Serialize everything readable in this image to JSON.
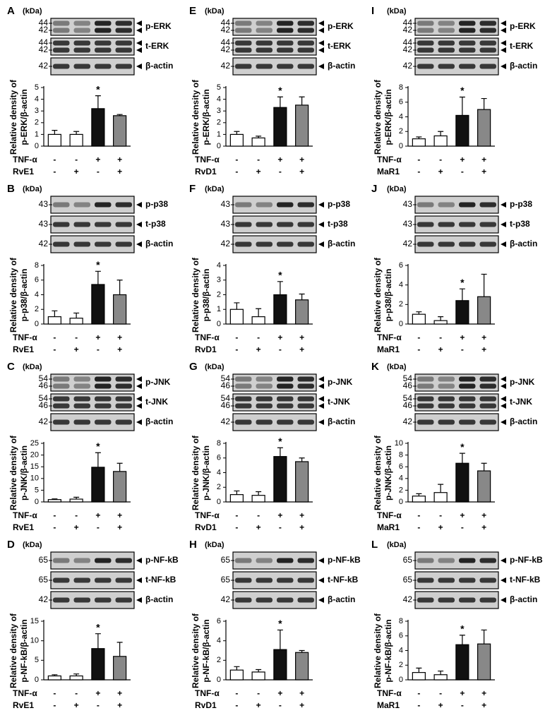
{
  "chart_data": [
    {
      "type": "bar",
      "panel": "A",
      "kda": "(kDa)",
      "blots": [
        {
          "name": "p-ERK",
          "markers": [
            "44",
            "42"
          ]
        },
        {
          "name": "t-ERK",
          "markers": [
            "44",
            "42"
          ]
        },
        {
          "name": "β-actin",
          "markers": [
            "42"
          ]
        }
      ],
      "ylabel": [
        "Relative density of",
        "p-ERK/β-actin"
      ],
      "values": [
        1.0,
        1.0,
        3.2,
        2.6
      ],
      "errors": [
        0.35,
        0.25,
        1.1,
        0.1
      ],
      "annotations": [
        null,
        null,
        "*",
        null
      ],
      "colors": [
        "#ffffff",
        "#ffffff",
        "#111111",
        "#888888"
      ],
      "ylim": [
        0,
        5
      ],
      "yticks": [
        0,
        1,
        2,
        3,
        4,
        5
      ],
      "treatments": [
        {
          "name": "TNF-α",
          "signs": [
            "-",
            "-",
            "+",
            "+"
          ]
        },
        {
          "name": "RvE1",
          "signs": [
            "-",
            "+",
            "-",
            "+"
          ]
        }
      ]
    },
    {
      "type": "bar",
      "panel": "B",
      "kda": "(kDa)",
      "blots": [
        {
          "name": "p-p38",
          "markers": [
            "43"
          ]
        },
        {
          "name": "t-p38",
          "markers": [
            "43"
          ]
        },
        {
          "name": "β-actin",
          "markers": [
            "42"
          ]
        }
      ],
      "ylabel": [
        "Relative density of",
        "p-p38/β-actin"
      ],
      "values": [
        1.0,
        0.8,
        5.4,
        4.0
      ],
      "errors": [
        0.8,
        0.7,
        1.8,
        2.0
      ],
      "annotations": [
        null,
        null,
        "*",
        null
      ],
      "colors": [
        "#ffffff",
        "#ffffff",
        "#111111",
        "#888888"
      ],
      "ylim": [
        0,
        8
      ],
      "yticks": [
        0,
        2,
        4,
        6,
        8
      ],
      "treatments": [
        {
          "name": "TNF-α",
          "signs": [
            "-",
            "-",
            "+",
            "+"
          ]
        },
        {
          "name": "RvE1",
          "signs": [
            "-",
            "+",
            "-",
            "+"
          ]
        }
      ]
    },
    {
      "type": "bar",
      "panel": "C",
      "kda": "(kDa)",
      "blots": [
        {
          "name": "p-JNK",
          "markers": [
            "54",
            "46"
          ]
        },
        {
          "name": "t-JNK",
          "markers": [
            "54",
            "46"
          ]
        },
        {
          "name": "β-actin",
          "markers": [
            "42"
          ]
        }
      ],
      "ylabel": [
        "Relative density of",
        "p-JNK/β-actin"
      ],
      "values": [
        1.0,
        1.2,
        14.8,
        13.0
      ],
      "errors": [
        0.3,
        0.8,
        6.2,
        3.5
      ],
      "annotations": [
        null,
        null,
        "*",
        null
      ],
      "colors": [
        "#ffffff",
        "#ffffff",
        "#111111",
        "#888888"
      ],
      "ylim": [
        0,
        25
      ],
      "yticks": [
        0,
        5,
        10,
        15,
        20,
        25
      ],
      "treatments": [
        {
          "name": "TNF-α",
          "signs": [
            "-",
            "-",
            "+",
            "+"
          ]
        },
        {
          "name": "RvE1",
          "signs": [
            "-",
            "+",
            "-",
            "+"
          ]
        }
      ]
    },
    {
      "type": "bar",
      "panel": "D",
      "kda": "(kDa)",
      "blots": [
        {
          "name": "p-NF-kB",
          "markers": [
            "65"
          ]
        },
        {
          "name": "t-NF-kB",
          "markers": [
            "65"
          ]
        },
        {
          "name": "β-actin",
          "markers": [
            "42"
          ]
        }
      ],
      "ylabel": [
        "Relative density of",
        "p-NF-kB/β-actin"
      ],
      "values": [
        1.0,
        1.0,
        8.0,
        6.0
      ],
      "errors": [
        0.3,
        0.5,
        3.8,
        3.6
      ],
      "annotations": [
        null,
        null,
        "*",
        null
      ],
      "colors": [
        "#ffffff",
        "#ffffff",
        "#111111",
        "#888888"
      ],
      "ylim": [
        0,
        15
      ],
      "yticks": [
        0,
        5,
        10,
        15
      ],
      "treatments": [
        {
          "name": "TNF-α",
          "signs": [
            "-",
            "-",
            "+",
            "+"
          ]
        },
        {
          "name": "RvE1",
          "signs": [
            "-",
            "+",
            "-",
            "+"
          ]
        }
      ]
    },
    {
      "type": "bar",
      "panel": "E",
      "kda": "(kDa)",
      "blots": [
        {
          "name": "p-ERK",
          "markers": [
            "44",
            "42"
          ]
        },
        {
          "name": "t-ERK",
          "markers": [
            "44",
            "42"
          ]
        },
        {
          "name": "β-actin",
          "markers": [
            "42"
          ]
        }
      ],
      "ylabel": [
        "Relative density of",
        "p-ERK/β-actin"
      ],
      "values": [
        1.0,
        0.7,
        3.3,
        3.5
      ],
      "errors": [
        0.25,
        0.15,
        0.9,
        0.7
      ],
      "annotations": [
        null,
        null,
        "*",
        null
      ],
      "colors": [
        "#ffffff",
        "#ffffff",
        "#111111",
        "#888888"
      ],
      "ylim": [
        0,
        5
      ],
      "yticks": [
        0,
        1,
        2,
        3,
        4,
        5
      ],
      "treatments": [
        {
          "name": "TNF-α",
          "signs": [
            "-",
            "-",
            "+",
            "+"
          ]
        },
        {
          "name": "RvD1",
          "signs": [
            "-",
            "+",
            "-",
            "+"
          ]
        }
      ]
    },
    {
      "type": "bar",
      "panel": "F",
      "kda": "(kDa)",
      "blots": [
        {
          "name": "p-p38",
          "markers": [
            "43"
          ]
        },
        {
          "name": "t-p38",
          "markers": [
            "43"
          ]
        },
        {
          "name": "β-actin",
          "markers": [
            "42"
          ]
        }
      ],
      "ylabel": [
        "Relative density of",
        "p-p38/β-actin"
      ],
      "values": [
        1.0,
        0.5,
        2.0,
        1.65
      ],
      "errors": [
        0.45,
        0.55,
        0.9,
        0.4
      ],
      "annotations": [
        null,
        null,
        "*",
        null
      ],
      "colors": [
        "#ffffff",
        "#ffffff",
        "#111111",
        "#888888"
      ],
      "ylim": [
        0,
        4
      ],
      "yticks": [
        0,
        1,
        2,
        3,
        4
      ],
      "treatments": [
        {
          "name": "TNF-α",
          "signs": [
            "-",
            "-",
            "+",
            "+"
          ]
        },
        {
          "name": "RvD1",
          "signs": [
            "-",
            "+",
            "-",
            "+"
          ]
        }
      ]
    },
    {
      "type": "bar",
      "panel": "G",
      "kda": "(kDa)",
      "blots": [
        {
          "name": "p-JNK",
          "markers": [
            "54",
            "46"
          ]
        },
        {
          "name": "t-JNK",
          "markers": [
            "54",
            "46"
          ]
        },
        {
          "name": "β-actin",
          "markers": [
            "42"
          ]
        }
      ],
      "ylabel": [
        "Relative density of",
        "p-JNK/β-actin"
      ],
      "values": [
        1.0,
        0.9,
        6.2,
        5.5
      ],
      "errors": [
        0.5,
        0.5,
        1.2,
        0.5
      ],
      "annotations": [
        null,
        null,
        "*",
        null
      ],
      "colors": [
        "#ffffff",
        "#ffffff",
        "#111111",
        "#888888"
      ],
      "ylim": [
        0,
        8
      ],
      "yticks": [
        0,
        2,
        4,
        6,
        8
      ],
      "treatments": [
        {
          "name": "TNF-α",
          "signs": [
            "-",
            "-",
            "+",
            "+"
          ]
        },
        {
          "name": "RvD1",
          "signs": [
            "-",
            "+",
            "-",
            "+"
          ]
        }
      ]
    },
    {
      "type": "bar",
      "panel": "H",
      "kda": "(kDa)",
      "blots": [
        {
          "name": "p-NF-kB",
          "markers": [
            "65"
          ]
        },
        {
          "name": "t-NF-kB",
          "markers": [
            "65"
          ]
        },
        {
          "name": "β-actin",
          "markers": [
            "42"
          ]
        }
      ],
      "ylabel": [
        "Relative density of",
        "p-NF-kB/β-actin"
      ],
      "values": [
        1.0,
        0.8,
        3.1,
        2.8
      ],
      "errors": [
        0.35,
        0.25,
        2.0,
        0.2
      ],
      "annotations": [
        null,
        null,
        "*",
        null
      ],
      "colors": [
        "#ffffff",
        "#ffffff",
        "#111111",
        "#888888"
      ],
      "ylim": [
        0,
        6
      ],
      "yticks": [
        0,
        2,
        4,
        6
      ],
      "treatments": [
        {
          "name": "TNF-α",
          "signs": [
            "-",
            "-",
            "+",
            "+"
          ]
        },
        {
          "name": "RvD1",
          "signs": [
            "-",
            "+",
            "-",
            "+"
          ]
        }
      ]
    },
    {
      "type": "bar",
      "panel": "I",
      "kda": "(kDa)",
      "blots": [
        {
          "name": "p-ERK",
          "markers": [
            "44",
            "42"
          ]
        },
        {
          "name": "t-ERK",
          "markers": [
            "44",
            "42"
          ]
        },
        {
          "name": "β-actin",
          "markers": [
            "42"
          ]
        }
      ],
      "ylabel": [
        "Relative density of",
        "p-ERK/β-actin"
      ],
      "values": [
        1.0,
        1.4,
        4.2,
        5.0
      ],
      "errors": [
        0.25,
        0.6,
        2.5,
        1.5
      ],
      "annotations": [
        null,
        null,
        "*",
        null
      ],
      "colors": [
        "#ffffff",
        "#ffffff",
        "#111111",
        "#888888"
      ],
      "ylim": [
        0,
        8
      ],
      "yticks": [
        0,
        2,
        4,
        6,
        8
      ],
      "treatments": [
        {
          "name": "TNF-α",
          "signs": [
            "-",
            "-",
            "+",
            "+"
          ]
        },
        {
          "name": "MaR1",
          "signs": [
            "-",
            "+",
            "-",
            "+"
          ]
        }
      ]
    },
    {
      "type": "bar",
      "panel": "J",
      "kda": "(kDa)",
      "blots": [
        {
          "name": "p-p38",
          "markers": [
            "43"
          ]
        },
        {
          "name": "t-p38",
          "markers": [
            "43"
          ]
        },
        {
          "name": "β-actin",
          "markers": [
            "42"
          ]
        }
      ],
      "ylabel": [
        "Relative density of",
        "p-p38/β-actin"
      ],
      "values": [
        1.0,
        0.35,
        2.4,
        2.8
      ],
      "errors": [
        0.25,
        0.4,
        1.2,
        2.3
      ],
      "annotations": [
        null,
        null,
        "*",
        null
      ],
      "colors": [
        "#ffffff",
        "#ffffff",
        "#111111",
        "#888888"
      ],
      "ylim": [
        0,
        6
      ],
      "yticks": [
        0,
        2,
        4,
        6
      ],
      "treatments": [
        {
          "name": "TNF-α",
          "signs": [
            "-",
            "-",
            "+",
            "+"
          ]
        },
        {
          "name": "MaR1",
          "signs": [
            "-",
            "+",
            "-",
            "+"
          ]
        }
      ]
    },
    {
      "type": "bar",
      "panel": "K",
      "kda": "(kDa)",
      "blots": [
        {
          "name": "p-JNK",
          "markers": [
            "54",
            "46"
          ]
        },
        {
          "name": "t-JNK",
          "markers": [
            "54",
            "46"
          ]
        },
        {
          "name": "β-actin",
          "markers": [
            "42"
          ]
        }
      ],
      "ylabel": [
        "Relative density of",
        "p-JNK/β-actin"
      ],
      "values": [
        1.0,
        1.6,
        6.6,
        5.3
      ],
      "errors": [
        0.4,
        1.4,
        1.7,
        1.3
      ],
      "annotations": [
        null,
        null,
        "*",
        null
      ],
      "colors": [
        "#ffffff",
        "#ffffff",
        "#111111",
        "#888888"
      ],
      "ylim": [
        0,
        10
      ],
      "yticks": [
        0,
        2,
        4,
        6,
        8,
        10
      ],
      "treatments": [
        {
          "name": "TNF-α",
          "signs": [
            "-",
            "-",
            "+",
            "+"
          ]
        },
        {
          "name": "MaR1",
          "signs": [
            "-",
            "+",
            "-",
            "+"
          ]
        }
      ]
    },
    {
      "type": "bar",
      "panel": "L",
      "kda": "(kDa)",
      "blots": [
        {
          "name": "p-NF-kB",
          "markers": [
            "65"
          ]
        },
        {
          "name": "t-NF-kB",
          "markers": [
            "65"
          ]
        },
        {
          "name": "β-actin",
          "markers": [
            "42"
          ]
        }
      ],
      "ylabel": [
        "Relative density of",
        "p-NF-kB/β-actin"
      ],
      "values": [
        1.0,
        0.7,
        4.8,
        4.9
      ],
      "errors": [
        0.6,
        0.5,
        1.3,
        1.9
      ],
      "annotations": [
        null,
        null,
        "*",
        null
      ],
      "colors": [
        "#ffffff",
        "#ffffff",
        "#111111",
        "#888888"
      ],
      "ylim": [
        0,
        8
      ],
      "yticks": [
        0,
        2,
        4,
        6,
        8
      ],
      "treatments": [
        {
          "name": "TNF-α",
          "signs": [
            "-",
            "-",
            "+",
            "+"
          ]
        },
        {
          "name": "MaR1",
          "signs": [
            "-",
            "+",
            "-",
            "+"
          ]
        }
      ]
    }
  ]
}
